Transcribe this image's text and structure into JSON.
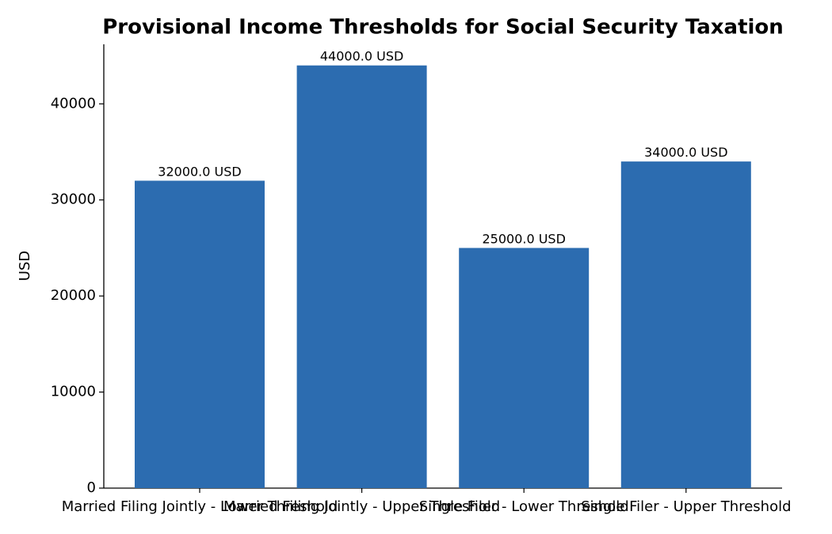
{
  "chart_data": {
    "type": "bar",
    "title": "Provisional Income Thresholds for Social Security Taxation",
    "y_label": "USD",
    "categories": [
      "Married Filing Jointly - Lower Threshold",
      "Married Filing Jointly - Upper Threshold",
      "Single Filer - Lower Threshold",
      "Single Filer - Upper Threshold"
    ],
    "values": [
      32000,
      44000,
      25000,
      34000
    ],
    "value_labels": [
      "32000.0 USD",
      "44000.0 USD",
      "25000.0 USD",
      "34000.0 USD"
    ],
    "color": "#2c6cb0",
    "ylim": [
      0,
      46200
    ],
    "yticks": [
      0,
      10000,
      20000,
      30000,
      40000
    ],
    "grid": false
  }
}
